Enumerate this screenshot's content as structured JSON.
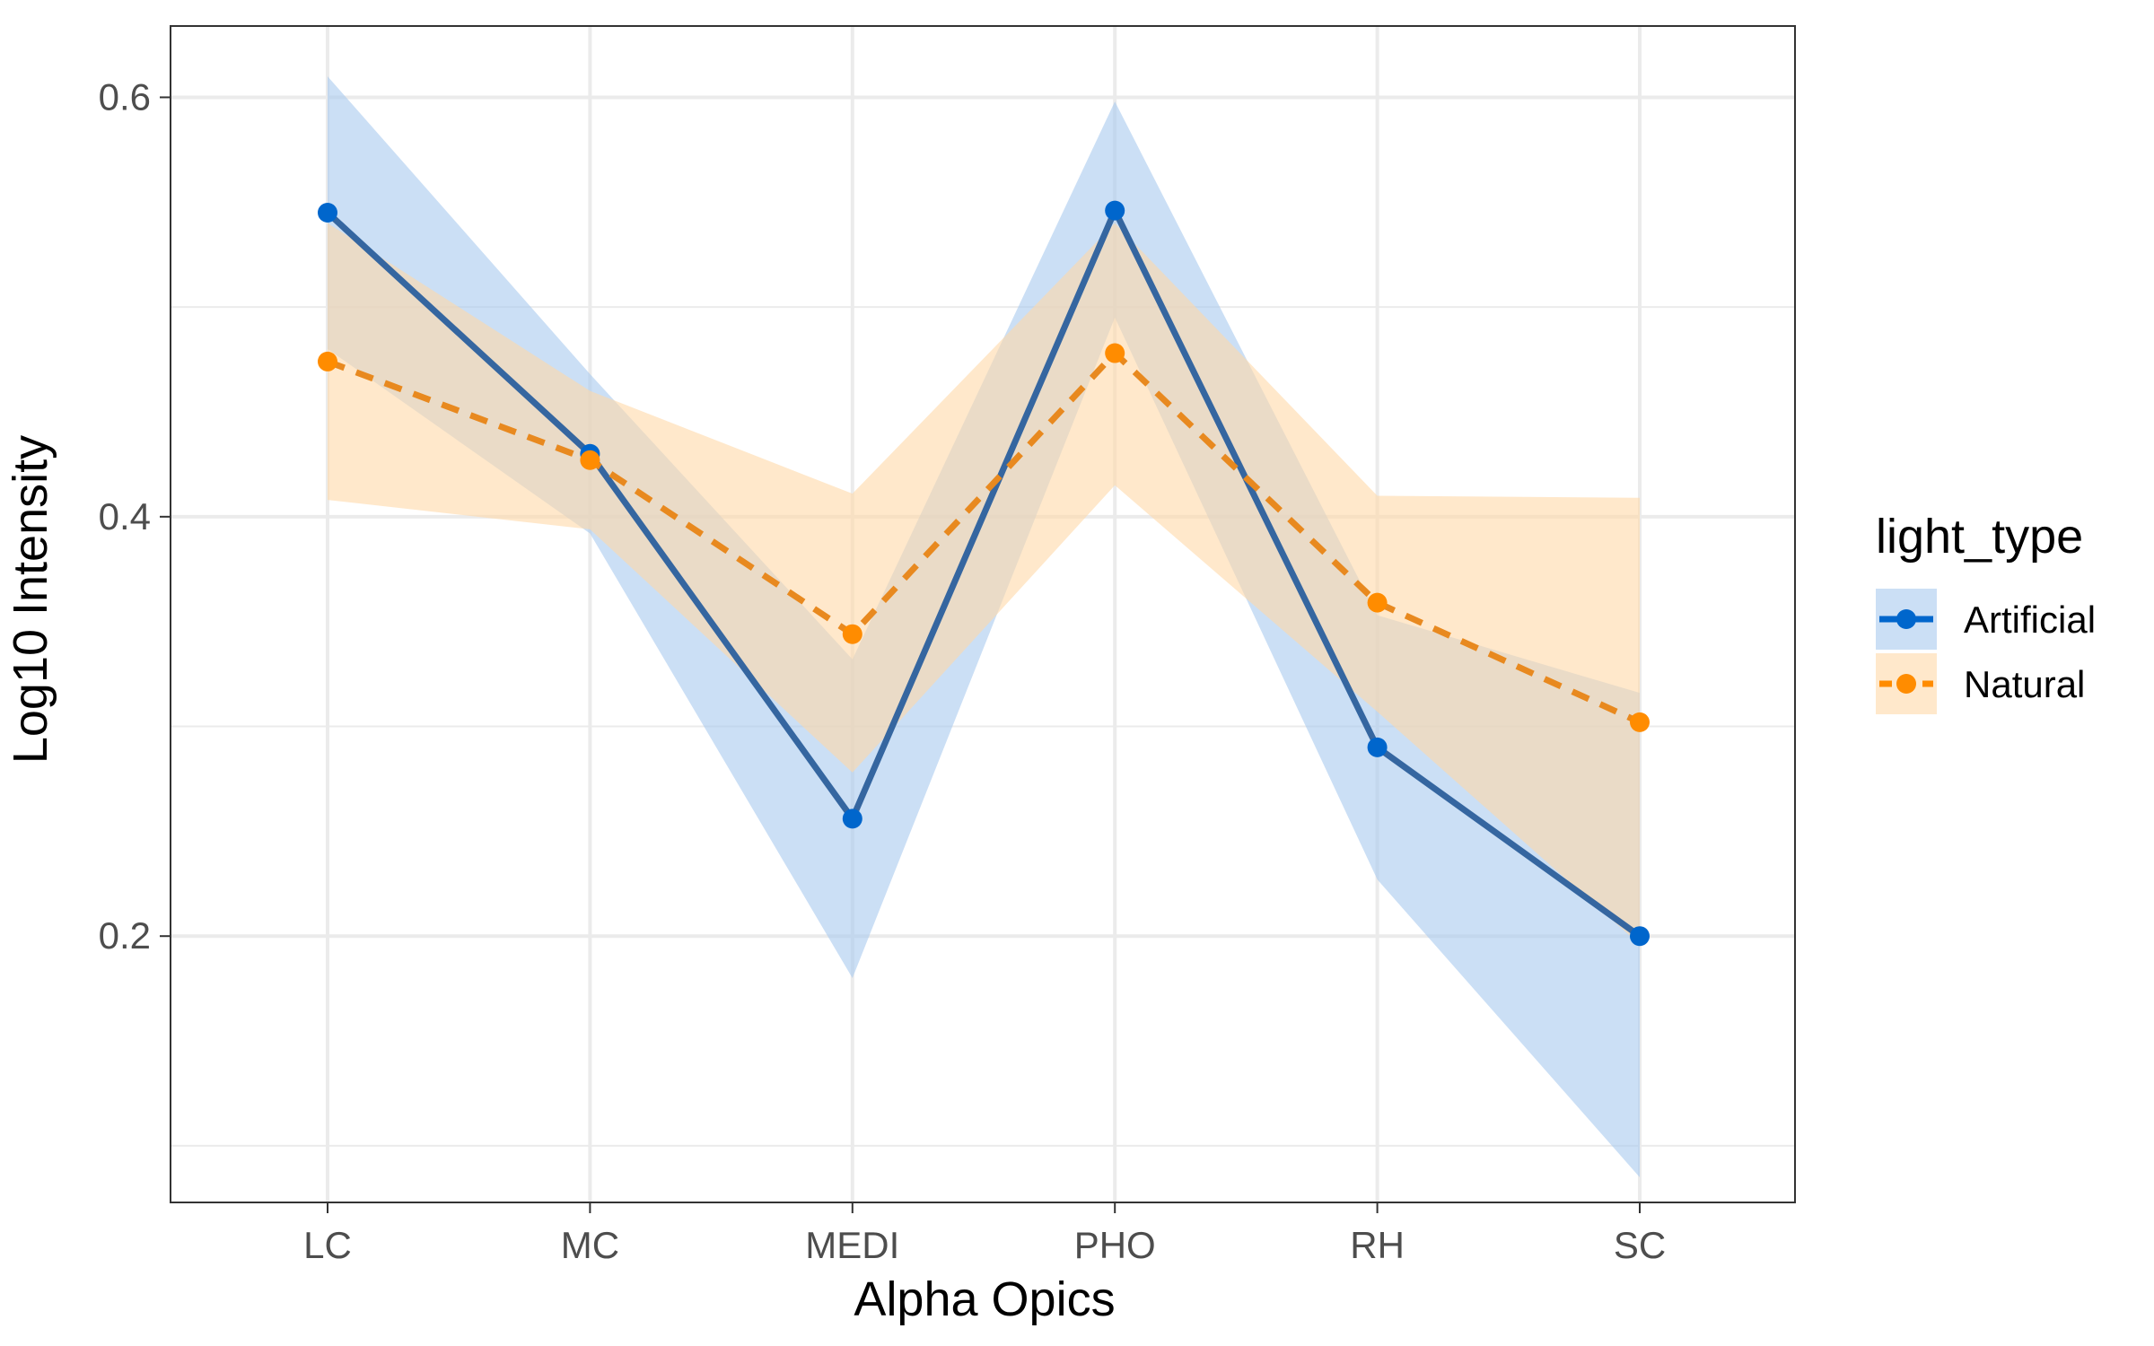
{
  "chart_data": {
    "type": "line",
    "title": "",
    "xlabel": "Alpha Opics",
    "ylabel": "Log10 Intensity",
    "categories": [
      "LC",
      "MC",
      "MEDI",
      "PHO",
      "RH",
      "SC"
    ],
    "ylim": [
      0.073,
      0.634
    ],
    "yticks": [
      0.2,
      0.4,
      0.6
    ],
    "ytick_labels": [
      "0.2",
      "0.4",
      "0.6"
    ],
    "grid": true,
    "legend": {
      "title": "light_type",
      "position": "right"
    },
    "series": [
      {
        "name": "Artificial",
        "color": "#0066CC",
        "band_color": "#A9C9EE",
        "line_style": "solid",
        "values": [
          0.545,
          0.43,
          0.256,
          0.546,
          0.29,
          0.2
        ],
        "lower": [
          0.48,
          0.392,
          0.18,
          0.495,
          0.227,
          0.085
        ],
        "upper": [
          0.61,
          0.468,
          0.332,
          0.598,
          0.353,
          0.316
        ]
      },
      {
        "name": "Natural",
        "color": "#FF8C00",
        "band_color": "#FFD8A8",
        "line_style": "dashed",
        "values": [
          0.474,
          0.427,
          0.344,
          0.478,
          0.359,
          0.302
        ],
        "lower": [
          0.408,
          0.394,
          0.278,
          0.415,
          0.307,
          0.196
        ],
        "upper": [
          0.54,
          0.46,
          0.411,
          0.54,
          0.41,
          0.409
        ]
      }
    ]
  }
}
